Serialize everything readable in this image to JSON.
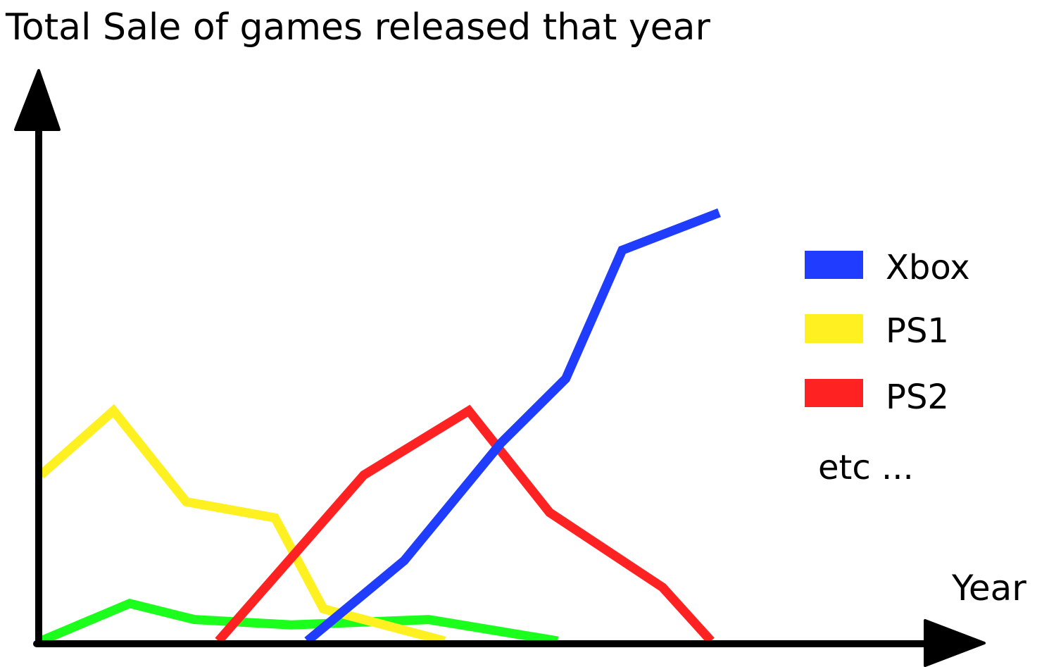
{
  "chart_data": {
    "type": "line",
    "title": "Total Sale of games released that year",
    "xlabel": "Year",
    "ylabel": "",
    "grid": false,
    "legend_position": "right",
    "legend_note": "etc ...",
    "ylim": [
      0,
      100
    ],
    "xlim": [
      0,
      100
    ],
    "series": [
      {
        "name": "Xbox",
        "color": "#1f3cff",
        "x": [
          33,
          45,
          57,
          65,
          72,
          84
        ],
        "y": [
          0,
          15,
          37,
          49,
          73,
          80
        ]
      },
      {
        "name": "PS1",
        "color": "#fff021",
        "x": [
          0,
          9,
          18,
          29,
          35,
          50
        ],
        "y": [
          31,
          43,
          26,
          23,
          6,
          0
        ]
      },
      {
        "name": "PS2",
        "color": "#ff2222",
        "x": [
          22,
          40,
          53,
          63,
          77,
          83
        ],
        "y": [
          0,
          31,
          43,
          24,
          10,
          0
        ]
      },
      {
        "name": "",
        "color": "#1cff1c",
        "x": [
          0,
          11,
          19,
          31,
          48,
          64
        ],
        "y": [
          0,
          7,
          4,
          3,
          4,
          0
        ]
      }
    ]
  }
}
